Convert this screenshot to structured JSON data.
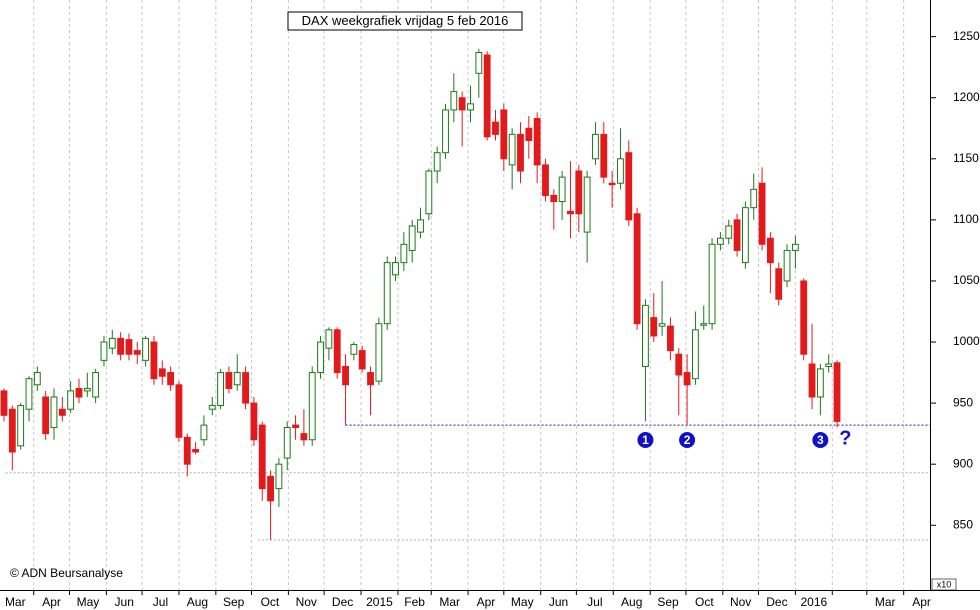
{
  "chart_data": {
    "type": "candlestick",
    "title": "DAX weekgrafiek vrijdag 5 feb 2016",
    "copyright": "© ADN Beursanalyse",
    "axis_multiplier": "x10",
    "up_color": "#1a7a1a",
    "down_color": "#e31a1c",
    "grid": true,
    "open": [
      960,
      945,
      915,
      945,
      965,
      955,
      930,
      945,
      945,
      962,
      960,
      955,
      985,
      995,
      1003,
      1002,
      993,
      985,
      1000,
      978,
      975,
      965,
      922,
      912,
      920,
      945,
      948,
      975,
      965,
      975,
      950,
      932,
      890,
      880,
      905,
      932,
      925,
      920,
      975,
      995,
      1010,
      980,
      990,
      993,
      975,
      968,
      1015,
      1055,
      1065,
      1075,
      1090,
      1105,
      1140,
      1155,
      1190,
      1200,
      1190,
      1220,
      1235,
      1180,
      1190,
      1145,
      1170,
      1175,
      1183,
      1145,
      1120,
      1115,
      1107,
      1140,
      1090,
      1150,
      1170,
      1130,
      1130,
      1155,
      1105,
      980,
      1020,
      1013,
      1013,
      990,
      975,
      970,
      1015,
      1015,
      1080,
      1085,
      1100,
      1065,
      1110,
      1130,
      1085,
      1060,
      1050,
      1075,
      1050,
      982,
      955,
      980,
      983
    ],
    "high": [
      962,
      948,
      950,
      972,
      980,
      960,
      962,
      955,
      968,
      970,
      975,
      978,
      1005,
      1010,
      1008,
      1007,
      1000,
      1005,
      1005,
      985,
      980,
      968,
      925,
      918,
      940,
      955,
      978,
      980,
      990,
      980,
      955,
      935,
      895,
      905,
      935,
      940,
      945,
      980,
      1005,
      1012,
      1012,
      990,
      1000,
      997,
      980,
      1020,
      1070,
      1070,
      1090,
      1100,
      1110,
      1142,
      1160,
      1195,
      1220,
      1205,
      1210,
      1240,
      1238,
      1190,
      1195,
      1175,
      1180,
      1185,
      1188,
      1150,
      1125,
      1140,
      1148,
      1145,
      1140,
      1180,
      1180,
      1140,
      1175,
      1165,
      1110,
      1035,
      1040,
      1050,
      1020,
      995,
      990,
      1025,
      1030,
      1085,
      1090,
      1100,
      1105,
      1115,
      1138,
      1143,
      1090,
      1065,
      1080,
      1087,
      1052,
      1015,
      982,
      990,
      985
    ],
    "low": [
      935,
      895,
      912,
      935,
      960,
      920,
      920,
      935,
      942,
      950,
      955,
      950,
      980,
      990,
      985,
      985,
      982,
      980,
      965,
      965,
      960,
      918,
      890,
      908,
      915,
      940,
      945,
      958,
      960,
      945,
      915,
      870,
      838,
      865,
      895,
      920,
      915,
      915,
      970,
      985,
      970,
      932,
      985,
      975,
      940,
      965,
      1010,
      1050,
      1058,
      1065,
      1085,
      1100,
      1130,
      1150,
      1180,
      1160,
      1180,
      1200,
      1165,
      1165,
      1140,
      1125,
      1130,
      1150,
      1130,
      1115,
      1092,
      1100,
      1085,
      1090,
      1065,
      1145,
      1130,
      1110,
      1125,
      1095,
      1010,
      935,
      1000,
      1005,
      985,
      940,
      932,
      965,
      1010,
      1010,
      1075,
      1080,
      1070,
      1060,
      1100,
      1075,
      1040,
      1030,
      1045,
      1060,
      985,
      945,
      940,
      975,
      930
    ],
    "close": [
      940,
      910,
      948,
      970,
      975,
      925,
      955,
      940,
      960,
      955,
      962,
      975,
      1000,
      1003,
      990,
      990,
      990,
      1003,
      970,
      972,
      965,
      922,
      900,
      910,
      932,
      948,
      975,
      962,
      975,
      950,
      920,
      880,
      870,
      900,
      930,
      930,
      920,
      975,
      1000,
      1010,
      975,
      965,
      998,
      978,
      965,
      1015,
      1065,
      1065,
      1080,
      1095,
      1100,
      1140,
      1155,
      1190,
      1205,
      1190,
      1195,
      1237,
      1168,
      1170,
      1150,
      1170,
      1140,
      1165,
      1145,
      1120,
      1115,
      1135,
      1105,
      1105,
      1135,
      1170,
      1135,
      1129,
      1150,
      1100,
      1015,
      1030,
      1005,
      1015,
      993,
      973,
      965,
      1010,
      1015,
      1080,
      1085,
      1095,
      1075,
      1110,
      1125,
      1080,
      1065,
      1035,
      1075,
      1080,
      990,
      955,
      978,
      982,
      935
    ],
    "xlim": [
      -0.48,
      111.16
    ],
    "xticks": [
      {
        "value": -0.86,
        "label": "Mar"
      },
      {
        "value": 3.57,
        "label": "Apr"
      },
      {
        "value": 7.86,
        "label": "May"
      },
      {
        "value": 12.29,
        "label": "Jun"
      },
      {
        "value": 16.57,
        "label": "Jul"
      },
      {
        "value": 21.0,
        "label": "Aug"
      },
      {
        "value": 25.43,
        "label": "Sep"
      },
      {
        "value": 29.71,
        "label": "Oct"
      },
      {
        "value": 34.14,
        "label": "Nov"
      },
      {
        "value": 38.43,
        "label": "Dec"
      },
      {
        "value": 42.86,
        "label": "2015"
      },
      {
        "value": 47.29,
        "label": "Feb"
      },
      {
        "value": 51.29,
        "label": "Mar"
      },
      {
        "value": 55.71,
        "label": "Apr"
      },
      {
        "value": 60.0,
        "label": "May"
      },
      {
        "value": 64.43,
        "label": "Jun"
      },
      {
        "value": 68.71,
        "label": "Jul"
      },
      {
        "value": 73.14,
        "label": "Aug"
      },
      {
        "value": 77.57,
        "label": "Sep"
      },
      {
        "value": 81.86,
        "label": "Oct"
      },
      {
        "value": 86.29,
        "label": "Nov"
      },
      {
        "value": 90.57,
        "label": "Dec"
      },
      {
        "value": 95.0,
        "label": "2016"
      },
      {
        "value": 99.43,
        "label": null
      },
      {
        "value": 103.57,
        "label": "Mar"
      },
      {
        "value": 108.0,
        "label": "Apr"
      },
      {
        "value": 112.29,
        "label": null
      }
    ],
    "ylim": [
      797,
      1280
    ],
    "yticks": [
      850,
      900,
      950,
      1000,
      1050,
      1100,
      1150,
      1200,
      1250
    ],
    "support_lines": [
      {
        "value": 932,
        "start": 41,
        "color": "#1a1aa0"
      },
      {
        "value": 893,
        "start": 0.2,
        "color": "#b0b0b0"
      },
      {
        "value": 838,
        "start": 30.5,
        "color": "#b0b0b0"
      }
    ],
    "numbered_markers": [
      {
        "label": "1",
        "index": 77
      },
      {
        "label": "2",
        "index": 82
      },
      {
        "label": "3",
        "index": 98
      }
    ],
    "note": {
      "text": "?",
      "index": 101
    }
  }
}
